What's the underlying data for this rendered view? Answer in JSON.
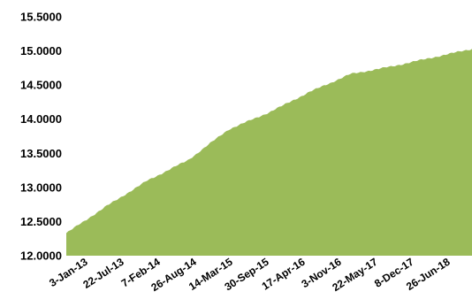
{
  "chart_data": {
    "type": "area",
    "color": "#9bbb59",
    "ylim": [
      12.0,
      15.5
    ],
    "y_ticks": [
      12.0,
      12.5,
      13.0,
      13.5,
      14.0,
      14.5,
      15.0,
      15.5
    ],
    "y_tick_labels": [
      "12.0000",
      "12.5000",
      "13.0000",
      "13.5000",
      "14.0000",
      "14.5000",
      "15.0000",
      "15.5000"
    ],
    "x_tick_labels": [
      "3-Jan-13",
      "22-Jul-13",
      "7-Feb-14",
      "26-Aug-14",
      "14-Mar-15",
      "30-Sep-15",
      "17-Apr-16",
      "3-Nov-16",
      "22-May-17",
      "8-Dec-17",
      "26-Jun-18"
    ],
    "grid": false,
    "legend": "none",
    "x": [
      "3-Jan-13",
      "22-Jul-13",
      "7-Feb-14",
      "26-Aug-14",
      "14-Mar-15",
      "30-Sep-15",
      "17-Apr-16",
      "3-Nov-16",
      "22-May-17",
      "8-Dec-17",
      "26-Jun-18"
    ],
    "values": [
      12.33,
      12.73,
      13.1,
      13.4,
      13.85,
      14.1,
      14.4,
      14.66,
      14.77,
      14.9,
      15.03
    ]
  }
}
